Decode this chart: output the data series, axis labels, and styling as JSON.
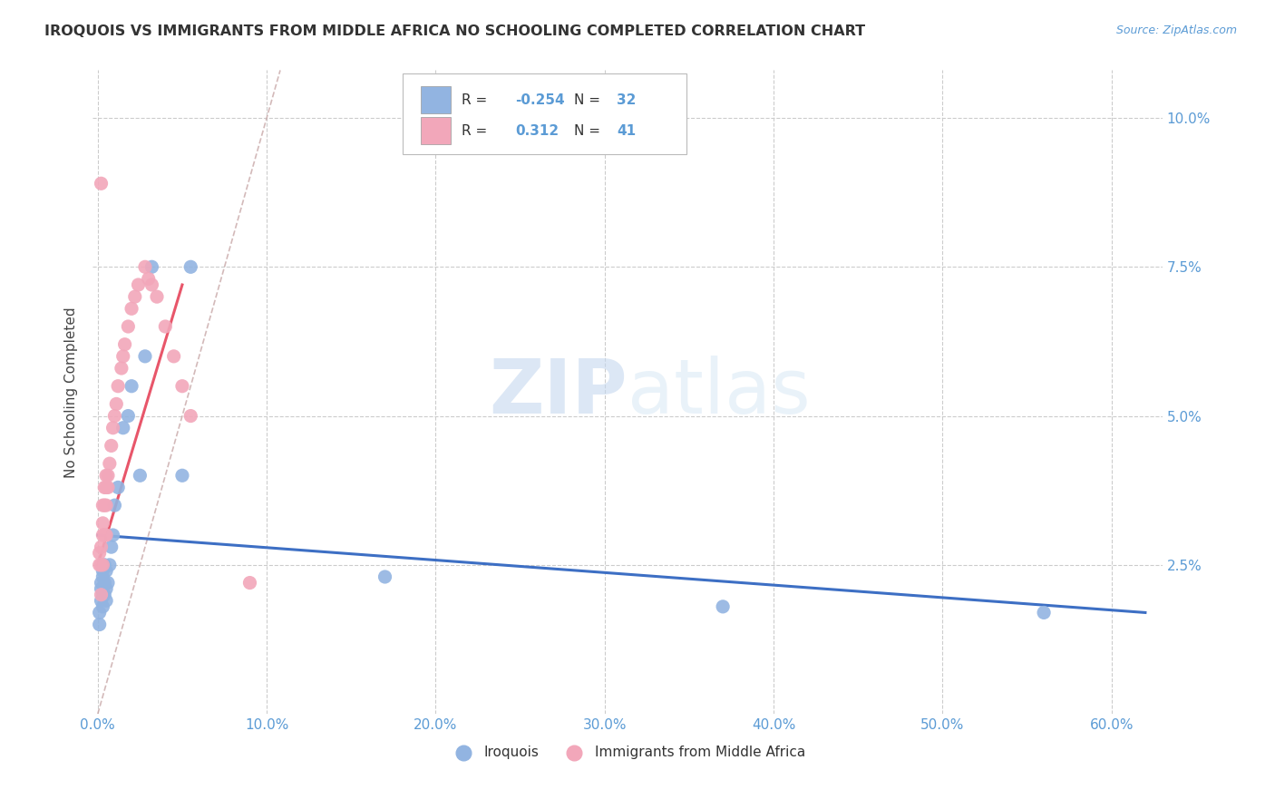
{
  "title": "IROQUOIS VS IMMIGRANTS FROM MIDDLE AFRICA NO SCHOOLING COMPLETED CORRELATION CHART",
  "source": "Source: ZipAtlas.com",
  "ylabel": "No Schooling Completed",
  "xlabel_ticks": [
    "0.0%",
    "10.0%",
    "20.0%",
    "30.0%",
    "40.0%",
    "50.0%",
    "60.0%"
  ],
  "xlabel_vals": [
    0.0,
    0.1,
    0.2,
    0.3,
    0.4,
    0.5,
    0.6
  ],
  "ylabel_ticks": [
    "2.5%",
    "5.0%",
    "7.5%",
    "10.0%"
  ],
  "ylabel_vals": [
    0.025,
    0.05,
    0.075,
    0.1
  ],
  "xlim": [
    -0.003,
    0.63
  ],
  "ylim": [
    0.0,
    0.108
  ],
  "legend1_R": "-0.254",
  "legend1_N": "32",
  "legend2_R": "0.312",
  "legend2_N": "41",
  "color_blue": "#92b4e1",
  "color_pink": "#f2a7ba",
  "color_blue_line": "#3d6fc4",
  "color_pink_line": "#e8566a",
  "color_diag": "#c8a8a8",
  "watermark_zip": "ZIP",
  "watermark_atlas": "atlas",
  "blue_x": [
    0.001,
    0.001,
    0.002,
    0.002,
    0.002,
    0.003,
    0.003,
    0.003,
    0.003,
    0.004,
    0.004,
    0.004,
    0.005,
    0.005,
    0.005,
    0.006,
    0.007,
    0.008,
    0.009,
    0.01,
    0.012,
    0.015,
    0.018,
    0.02,
    0.025,
    0.028,
    0.032,
    0.05,
    0.055,
    0.17,
    0.37,
    0.56
  ],
  "blue_y": [
    0.015,
    0.017,
    0.019,
    0.021,
    0.022,
    0.018,
    0.02,
    0.023,
    0.024,
    0.02,
    0.022,
    0.025,
    0.019,
    0.021,
    0.024,
    0.022,
    0.025,
    0.028,
    0.03,
    0.035,
    0.038,
    0.048,
    0.05,
    0.055,
    0.04,
    0.06,
    0.075,
    0.04,
    0.075,
    0.023,
    0.018,
    0.017
  ],
  "pink_x": [
    0.001,
    0.001,
    0.002,
    0.002,
    0.002,
    0.003,
    0.003,
    0.003,
    0.003,
    0.004,
    0.004,
    0.004,
    0.005,
    0.005,
    0.005,
    0.005,
    0.006,
    0.006,
    0.007,
    0.008,
    0.009,
    0.01,
    0.011,
    0.012,
    0.014,
    0.015,
    0.016,
    0.018,
    0.02,
    0.022,
    0.024,
    0.028,
    0.03,
    0.032,
    0.035,
    0.04,
    0.045,
    0.05,
    0.055,
    0.09,
    0.002
  ],
  "pink_y": [
    0.025,
    0.027,
    0.02,
    0.025,
    0.028,
    0.025,
    0.03,
    0.032,
    0.035,
    0.03,
    0.035,
    0.038,
    0.03,
    0.035,
    0.038,
    0.04,
    0.038,
    0.04,
    0.042,
    0.045,
    0.048,
    0.05,
    0.052,
    0.055,
    0.058,
    0.06,
    0.062,
    0.065,
    0.068,
    0.07,
    0.072,
    0.075,
    0.073,
    0.072,
    0.07,
    0.065,
    0.06,
    0.055,
    0.05,
    0.022,
    0.089
  ],
  "pink_line_x": [
    0.0,
    0.05
  ],
  "pink_line_y": [
    0.025,
    0.072
  ],
  "blue_line_x": [
    0.0,
    0.62
  ],
  "blue_line_y": [
    0.03,
    0.017
  ],
  "diag_line_x": [
    0.0,
    0.108
  ],
  "diag_line_y": [
    0.0,
    0.108
  ]
}
